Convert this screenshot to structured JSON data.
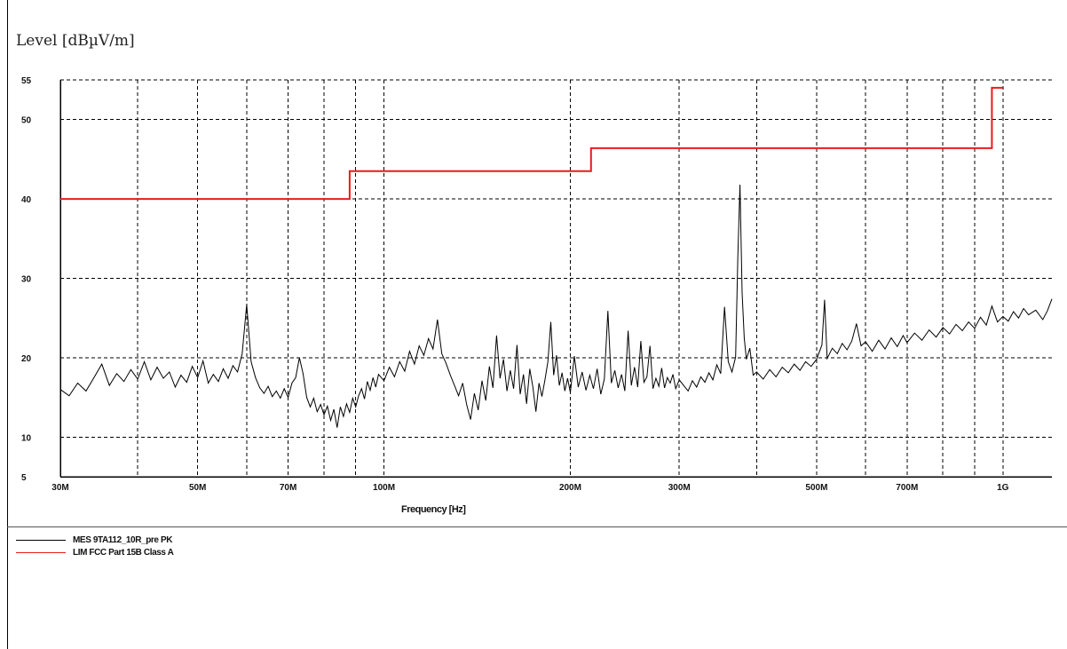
{
  "chart_data": {
    "type": "line",
    "ylabel": "Level  [dBµV/m]",
    "xlabel": "Frequency [Hz]",
    "x_scale": "log",
    "xlim": [
      30,
      1200
    ],
    "ylim": [
      5,
      55
    ],
    "y_ticks": [
      {
        "value": 55,
        "label": "55"
      },
      {
        "value": 50,
        "label": "50"
      },
      {
        "value": 40,
        "label": "40"
      },
      {
        "value": 30,
        "label": "30"
      },
      {
        "value": 20,
        "label": "20"
      },
      {
        "value": 10,
        "label": "10"
      },
      {
        "value": 5,
        "label": "5"
      }
    ],
    "x_ticks": [
      {
        "value": 30,
        "label": "30M"
      },
      {
        "value": 50,
        "label": "50M"
      },
      {
        "value": 70,
        "label": "70M"
      },
      {
        "value": 100,
        "label": "100M"
      },
      {
        "value": 200,
        "label": "200M"
      },
      {
        "value": 300,
        "label": "300M"
      },
      {
        "value": 500,
        "label": "500M"
      },
      {
        "value": 700,
        "label": "700M"
      },
      {
        "value": 1000,
        "label": "1G"
      }
    ],
    "x_grid": [
      30,
      40,
      50,
      60,
      70,
      80,
      90,
      100,
      200,
      300,
      400,
      500,
      600,
      700,
      800,
      900,
      1000
    ],
    "y_grid": [
      55,
      50,
      40,
      30,
      20,
      10
    ],
    "grid": true,
    "series": [
      {
        "name": "MES  9TA112_10R_pre PK",
        "color": "#000000",
        "points": [
          [
            30,
            16
          ],
          [
            31,
            15.2
          ],
          [
            32,
            16.8
          ],
          [
            33,
            15.8
          ],
          [
            34,
            17.5
          ],
          [
            35,
            19.2
          ],
          [
            36,
            16.5
          ],
          [
            37,
            18
          ],
          [
            38,
            17
          ],
          [
            39,
            18.5
          ],
          [
            40,
            17.3
          ],
          [
            41,
            19.5
          ],
          [
            42,
            17.2
          ],
          [
            43,
            18.8
          ],
          [
            44,
            17.4
          ],
          [
            45,
            18.2
          ],
          [
            46,
            16.3
          ],
          [
            47,
            17.8
          ],
          [
            48,
            16.9
          ],
          [
            49,
            18.9
          ],
          [
            50,
            17.5
          ],
          [
            51,
            19.6
          ],
          [
            52,
            16.8
          ],
          [
            53,
            17.9
          ],
          [
            54,
            17
          ],
          [
            55,
            18.6
          ],
          [
            56,
            17.4
          ],
          [
            57,
            19
          ],
          [
            58,
            18.2
          ],
          [
            59,
            20.5
          ],
          [
            60,
            26.7
          ],
          [
            61,
            19.5
          ],
          [
            62,
            17.5
          ],
          [
            63,
            16.2
          ],
          [
            64,
            15.5
          ],
          [
            65,
            16.4
          ],
          [
            66,
            15.1
          ],
          [
            67,
            15.8
          ],
          [
            68,
            14.9
          ],
          [
            69,
            16.1
          ],
          [
            70,
            15
          ],
          [
            71,
            16.8
          ],
          [
            72,
            17.5
          ],
          [
            73,
            20
          ],
          [
            74,
            18
          ],
          [
            75,
            15
          ],
          [
            76,
            13.8
          ],
          [
            77,
            14.9
          ],
          [
            78,
            13.2
          ],
          [
            79,
            14.1
          ],
          [
            80,
            12.8
          ],
          [
            81,
            13.9
          ],
          [
            82,
            12.1
          ],
          [
            83,
            13.5
          ],
          [
            84,
            11.2
          ],
          [
            85,
            13.8
          ],
          [
            86,
            12.6
          ],
          [
            87,
            14.2
          ],
          [
            88,
            13.1
          ],
          [
            89,
            14.9
          ],
          [
            90,
            13.8
          ],
          [
            91,
            15.2
          ],
          [
            92,
            16.1
          ],
          [
            93,
            14.8
          ],
          [
            94,
            17
          ],
          [
            95,
            15.9
          ],
          [
            96,
            17.5
          ],
          [
            97,
            16.3
          ],
          [
            98,
            17.9
          ],
          [
            100,
            17.1
          ],
          [
            102,
            18.8
          ],
          [
            104,
            17.6
          ],
          [
            106,
            19.5
          ],
          [
            108,
            18.3
          ],
          [
            110,
            20.8
          ],
          [
            112,
            19.2
          ],
          [
            114,
            21.5
          ],
          [
            116,
            20.3
          ],
          [
            118,
            22.4
          ],
          [
            120,
            21.1
          ],
          [
            122,
            24.8
          ],
          [
            124,
            20.5
          ],
          [
            126,
            19.3
          ],
          [
            128,
            17.8
          ],
          [
            130,
            16.5
          ],
          [
            132,
            15.2
          ],
          [
            134,
            16.8
          ],
          [
            136,
            14.1
          ],
          [
            138,
            12.2
          ],
          [
            140,
            15.5
          ],
          [
            142,
            13.4
          ],
          [
            144,
            17.1
          ],
          [
            146,
            14.6
          ],
          [
            148,
            18.9
          ],
          [
            150,
            16.2
          ],
          [
            152,
            22.8
          ],
          [
            154,
            17.4
          ],
          [
            156,
            19.8
          ],
          [
            158,
            15.8
          ],
          [
            160,
            18.4
          ],
          [
            162,
            16.1
          ],
          [
            164,
            21.6
          ],
          [
            166,
            15.4
          ],
          [
            168,
            17.9
          ],
          [
            170,
            14.2
          ],
          [
            172,
            18.6
          ],
          [
            174,
            16.3
          ],
          [
            176,
            13.2
          ],
          [
            178,
            16.8
          ],
          [
            180,
            15.1
          ],
          [
            182,
            17.2
          ],
          [
            184,
            19.5
          ],
          [
            186,
            24.5
          ],
          [
            188,
            17.8
          ],
          [
            190,
            20.3
          ],
          [
            192,
            16.5
          ],
          [
            194,
            18.1
          ],
          [
            196,
            15.8
          ],
          [
            198,
            17.4
          ],
          [
            200,
            15.6
          ],
          [
            203,
            20.2
          ],
          [
            206,
            16.3
          ],
          [
            209,
            18.2
          ],
          [
            212,
            15.9
          ],
          [
            215,
            17.8
          ],
          [
            218,
            16.1
          ],
          [
            221,
            18.6
          ],
          [
            224,
            15.4
          ],
          [
            227,
            17.3
          ],
          [
            230,
            25.9
          ],
          [
            233,
            16.8
          ],
          [
            236,
            18.4
          ],
          [
            239,
            16.2
          ],
          [
            242,
            17.9
          ],
          [
            245,
            15.8
          ],
          [
            248,
            23.4
          ],
          [
            251,
            16.5
          ],
          [
            254,
            18.8
          ],
          [
            257,
            16.3
          ],
          [
            260,
            22.1
          ],
          [
            263,
            16.9
          ],
          [
            266,
            17.6
          ],
          [
            269,
            21.5
          ],
          [
            272,
            16.1
          ],
          [
            275,
            17.4
          ],
          [
            278,
            16.4
          ],
          [
            281,
            18.7
          ],
          [
            284,
            16.2
          ],
          [
            287,
            17.5
          ],
          [
            290,
            16.8
          ],
          [
            293,
            17.9
          ],
          [
            296,
            16.1
          ],
          [
            300,
            17.2
          ],
          [
            305,
            16.5
          ],
          [
            310,
            15.8
          ],
          [
            315,
            17.1
          ],
          [
            320,
            16.3
          ],
          [
            325,
            17.6
          ],
          [
            330,
            16.9
          ],
          [
            335,
            18.1
          ],
          [
            340,
            17.2
          ],
          [
            345,
            19.1
          ],
          [
            350,
            18
          ],
          [
            355,
            26.4
          ],
          [
            360,
            19.5
          ],
          [
            365,
            18.2
          ],
          [
            370,
            20.1
          ],
          [
            373,
            32.8
          ],
          [
            376,
            41.8
          ],
          [
            379,
            28.2
          ],
          [
            382,
            22.5
          ],
          [
            385,
            19.8
          ],
          [
            390,
            21.2
          ],
          [
            395,
            17.8
          ],
          [
            400,
            18.2
          ],
          [
            410,
            17.3
          ],
          [
            420,
            18.5
          ],
          [
            430,
            17.6
          ],
          [
            440,
            18.8
          ],
          [
            450,
            18.1
          ],
          [
            460,
            19.2
          ],
          [
            470,
            18.4
          ],
          [
            480,
            19.5
          ],
          [
            490,
            18.9
          ],
          [
            500,
            19.8
          ],
          [
            510,
            21.6
          ],
          [
            515,
            27.3
          ],
          [
            520,
            19.9
          ],
          [
            530,
            21.2
          ],
          [
            540,
            20.5
          ],
          [
            550,
            21.8
          ],
          [
            560,
            21
          ],
          [
            570,
            22.1
          ],
          [
            580,
            24.3
          ],
          [
            590,
            21.5
          ],
          [
            600,
            22
          ],
          [
            615,
            20.8
          ],
          [
            630,
            22.2
          ],
          [
            645,
            21.1
          ],
          [
            660,
            22.5
          ],
          [
            675,
            21.4
          ],
          [
            690,
            22.8
          ],
          [
            700,
            21.9
          ],
          [
            720,
            23.1
          ],
          [
            740,
            22.2
          ],
          [
            760,
            23.5
          ],
          [
            780,
            22.6
          ],
          [
            800,
            23.8
          ],
          [
            820,
            23
          ],
          [
            840,
            24.2
          ],
          [
            860,
            23.4
          ],
          [
            880,
            24.5
          ],
          [
            900,
            23.7
          ],
          [
            920,
            25.1
          ],
          [
            940,
            24.1
          ],
          [
            960,
            26.5
          ],
          [
            980,
            24.5
          ],
          [
            1000,
            25.2
          ],
          [
            1020,
            24.6
          ],
          [
            1040,
            25.8
          ],
          [
            1060,
            25
          ],
          [
            1080,
            26.2
          ],
          [
            1100,
            25.4
          ],
          [
            1130,
            26
          ],
          [
            1160,
            24.8
          ],
          [
            1180,
            25.9
          ],
          [
            1200,
            27.4
          ]
        ]
      },
      {
        "name": "LIM  FCC Part 15B Class A",
        "color": "#e81c1c",
        "points": [
          [
            30,
            40
          ],
          [
            88,
            40
          ],
          [
            88,
            43.5
          ],
          [
            216,
            43.5
          ],
          [
            216,
            46.4
          ],
          [
            960,
            46.4
          ],
          [
            960,
            54
          ],
          [
            1000,
            54
          ]
        ]
      }
    ]
  }
}
